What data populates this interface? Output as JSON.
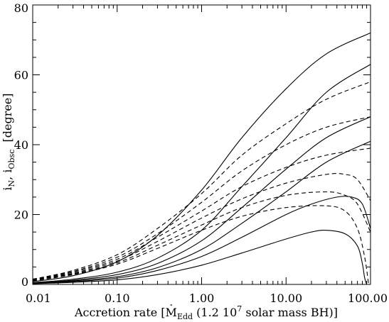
{
  "chart_data": {
    "type": "line",
    "xscale": "log",
    "xlim": [
      0.01,
      100
    ],
    "ylim": [
      0,
      80
    ],
    "grid": false,
    "legend": "none",
    "xlabel": {
      "prefix": "Accretion rate [",
      "mdot": "M",
      "mdot_sub": "Edd",
      "middle": " (1.2 10",
      "exp": "7",
      "suffix": " solar mass BH)]"
    },
    "ylabel": {
      "i1": "i",
      "i1_sub": "N",
      "sep": ", ",
      "i2": "i",
      "i2_sub": "Obsc",
      "suffix": "  [degree]"
    },
    "x_ticks": [
      {
        "value": 0.01,
        "label": "0.01"
      },
      {
        "value": 0.1,
        "label": "0.10"
      },
      {
        "value": 1,
        "label": "1.00"
      },
      {
        "value": 10,
        "label": "10.00"
      },
      {
        "value": 100,
        "label": "100.00"
      }
    ],
    "y_ticks": [
      {
        "value": 0,
        "label": "0"
      },
      {
        "value": 20,
        "label": "20"
      },
      {
        "value": 40,
        "label": "40"
      },
      {
        "value": 60,
        "label": "60"
      },
      {
        "value": 80,
        "label": "80"
      }
    ],
    "series": [
      {
        "style": "solid",
        "x": [
          0.01,
          0.03,
          0.1,
          0.3,
          1,
          3,
          10,
          30,
          100
        ],
        "y": [
          0.8,
          2.5,
          6.5,
          14,
          27,
          42,
          56,
          66,
          72
        ]
      },
      {
        "style": "solid",
        "x": [
          0.01,
          0.03,
          0.1,
          0.3,
          1,
          3,
          10,
          30,
          100
        ],
        "y": [
          0.5,
          1.5,
          3.5,
          7.5,
          15.5,
          28,
          42,
          55,
          63
        ]
      },
      {
        "style": "solid",
        "x": [
          0.01,
          0.03,
          0.1,
          0.3,
          1,
          3,
          10,
          30,
          100
        ],
        "y": [
          0.4,
          1.2,
          2.8,
          6,
          12.5,
          22,
          33,
          42,
          48
        ]
      },
      {
        "style": "solid",
        "x": [
          0.01,
          0.03,
          0.1,
          0.3,
          1,
          3,
          10,
          30,
          100
        ],
        "y": [
          0.3,
          1,
          2.2,
          4.8,
          10,
          17.5,
          26.5,
          35,
          41
        ]
      },
      {
        "style": "solid",
        "x": [
          0.01,
          0.03,
          0.1,
          0.3,
          1,
          3,
          10,
          20,
          40,
          60,
          80,
          100
        ],
        "y": [
          0.25,
          0.8,
          1.8,
          4,
          8,
          13.5,
          20,
          23,
          25,
          25,
          23,
          16
        ]
      },
      {
        "style": "solid",
        "x": [
          0.01,
          0.03,
          0.1,
          0.3,
          1,
          3,
          10,
          20,
          30,
          50,
          70,
          80,
          85,
          90
        ],
        "y": [
          0.2,
          0.6,
          1.3,
          2.8,
          5.5,
          9,
          13,
          15,
          15.5,
          14.5,
          11,
          6,
          2,
          0
        ]
      },
      {
        "style": "dashed",
        "x": [
          0.01,
          0.03,
          0.1,
          0.3,
          1,
          3,
          10,
          30,
          100
        ],
        "y": [
          1.5,
          4,
          8.5,
          16,
          26,
          37,
          46,
          53,
          58
        ]
      },
      {
        "style": "dashed",
        "x": [
          0.01,
          0.03,
          0.1,
          0.3,
          1,
          3,
          10,
          30,
          100
        ],
        "y": [
          1.4,
          3.7,
          7.8,
          14.5,
          23.5,
          32.5,
          40,
          45,
          48
        ]
      },
      {
        "style": "dashed",
        "x": [
          0.01,
          0.03,
          0.1,
          0.3,
          1,
          3,
          10,
          30,
          100
        ],
        "y": [
          1.3,
          3.5,
          7.2,
          13.5,
          21,
          28,
          33.5,
          37,
          39
        ]
      },
      {
        "style": "dashed",
        "x": [
          0.01,
          0.03,
          0.1,
          0.3,
          1,
          3,
          10,
          30,
          50,
          70,
          100
        ],
        "y": [
          1.2,
          3.2,
          6.7,
          12.3,
          19,
          24.5,
          29,
          31.5,
          31.5,
          30,
          24
        ]
      },
      {
        "style": "dashed",
        "x": [
          0.01,
          0.03,
          0.1,
          0.3,
          1,
          3,
          10,
          30,
          50,
          70,
          100
        ],
        "y": [
          1.1,
          3,
          6.2,
          11.2,
          17,
          22,
          25.5,
          26.5,
          25.5,
          23,
          15
        ]
      },
      {
        "style": "dashed",
        "x": [
          0.01,
          0.03,
          0.1,
          0.3,
          1,
          3,
          10,
          30,
          50,
          70,
          85,
          95
        ],
        "y": [
          1,
          2.8,
          5.8,
          10.3,
          15.5,
          19.5,
          22,
          22.5,
          21,
          16,
          8,
          0
        ]
      }
    ]
  }
}
